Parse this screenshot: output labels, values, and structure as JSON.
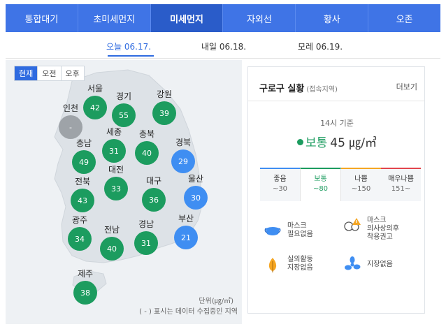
{
  "top_tabs": [
    "통합대기",
    "초미세먼지",
    "미세먼지",
    "자외선",
    "황사",
    "오존"
  ],
  "active_top_tab": "미세먼지",
  "date_tabs": [
    "오늘 06.17.",
    "내일 06.18.",
    "모레 06.19."
  ],
  "active_date_tab": "오늘 06.17.",
  "time_toggle": [
    "현재",
    "오전",
    "오후"
  ],
  "active_time": "현재",
  "regions": [
    {
      "name": "서울",
      "value": "42",
      "color": "green"
    },
    {
      "name": "경기",
      "value": "55",
      "color": "green"
    },
    {
      "name": "강원",
      "value": "39",
      "color": "green"
    },
    {
      "name": "인천",
      "value": "-",
      "color": "gray"
    },
    {
      "name": "세종",
      "value": "31",
      "color": "green"
    },
    {
      "name": "충북",
      "value": "40",
      "color": "green"
    },
    {
      "name": "경북",
      "value": "29",
      "color": "blue"
    },
    {
      "name": "충남",
      "value": "49",
      "color": "green"
    },
    {
      "name": "대전",
      "value": "33",
      "color": "green"
    },
    {
      "name": "전북",
      "value": "43",
      "color": "green"
    },
    {
      "name": "대구",
      "value": "36",
      "color": "green"
    },
    {
      "name": "울산",
      "value": "30",
      "color": "blue"
    },
    {
      "name": "광주",
      "value": "34",
      "color": "green"
    },
    {
      "name": "전남",
      "value": "40",
      "color": "green"
    },
    {
      "name": "경남",
      "value": "31",
      "color": "green"
    },
    {
      "name": "부산",
      "value": "21",
      "color": "blue"
    },
    {
      "name": "제주",
      "value": "38",
      "color": "green"
    }
  ],
  "map_unit": "단위(㎍/㎥)",
  "map_note": "( - ) 표시는 데이터 수집중인 지역",
  "info": {
    "title": "구로구 실황",
    "title_sub": "(접속지역)",
    "more": "더보기",
    "time": "14시 기준",
    "status": "보통",
    "value": "45 ㎍/㎥"
  },
  "scale": [
    {
      "label": "좋음",
      "range": "~30",
      "color": "#3f8ef2"
    },
    {
      "label": "보통",
      "range": "~80",
      "color": "#1c9c5f"
    },
    {
      "label": "나쁨",
      "range": "~150",
      "color": "#f5a623"
    },
    {
      "label": "매우나쁨",
      "range": "151~",
      "color": "#e2454d"
    }
  ],
  "active_scale": "보통",
  "tips": [
    {
      "icon": "mask-icon",
      "lines": [
        "마스크",
        "필요없음"
      ]
    },
    {
      "icon": "sensitive-group-icon",
      "lines": [
        "마스크",
        "의사상의후",
        "착용권고"
      ]
    },
    {
      "icon": "outdoor-activity-icon",
      "lines": [
        "실외활동",
        "지장없음"
      ]
    },
    {
      "icon": "ventilation-icon",
      "lines": [
        "지장없음"
      ]
    }
  ],
  "colors": {
    "primary": "#3f74e6",
    "good": "#3f8ef2",
    "normal": "#1c9c5f",
    "missing": "#9ea3a8"
  }
}
